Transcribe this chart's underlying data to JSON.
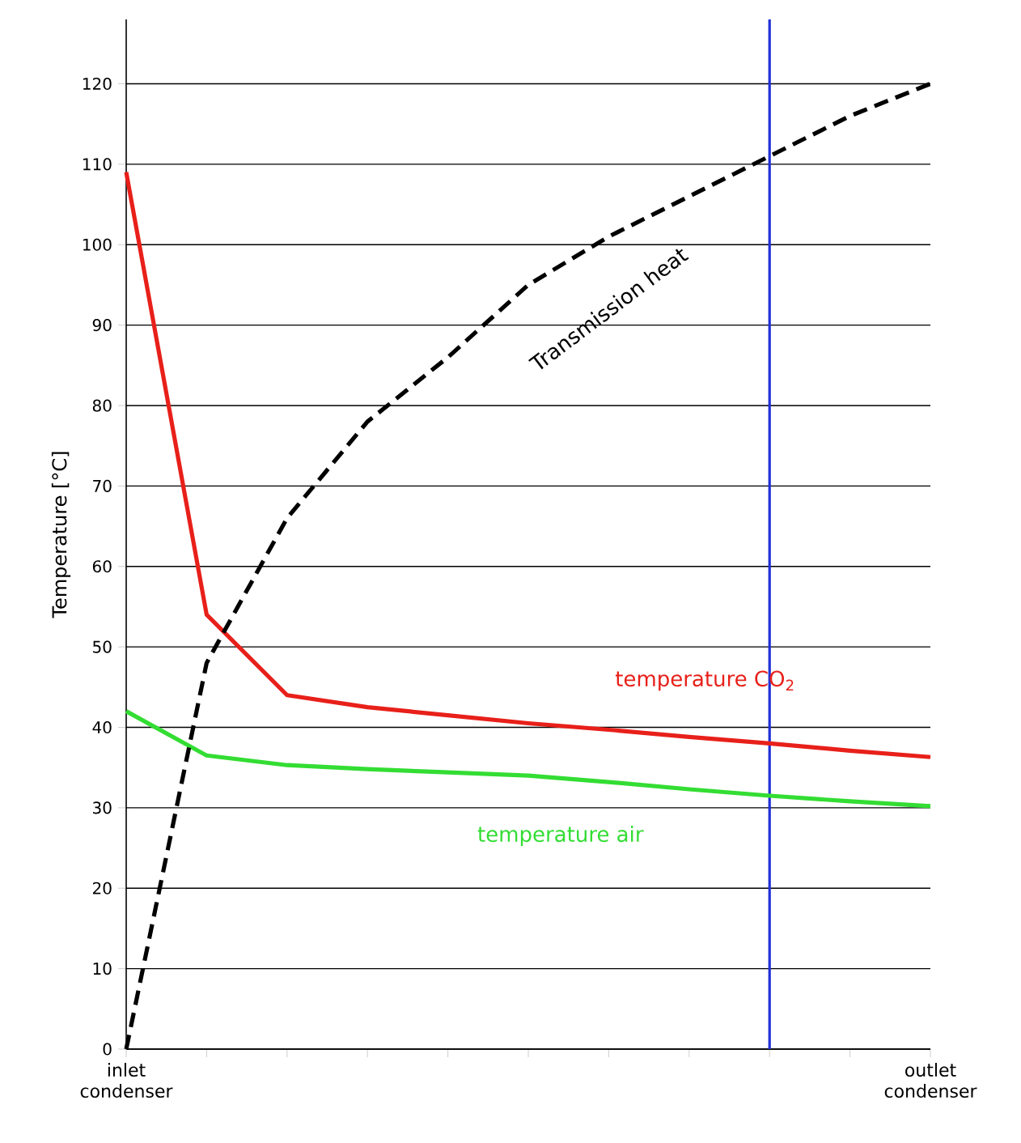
{
  "chart_data": {
    "type": "line",
    "ylabel": "Temperature [°C]",
    "ylim": [
      0,
      128
    ],
    "categories": [
      "inlet condenser",
      null,
      null,
      null,
      null,
      null,
      null,
      null,
      null,
      null,
      "outlet condenser"
    ],
    "yticks": [
      0,
      10,
      20,
      30,
      40,
      50,
      60,
      70,
      80,
      90,
      100,
      110,
      120
    ],
    "grid": "y",
    "marker": "none",
    "series": [
      {
        "name": "temperature CO$_{2}$",
        "color": "#e8201a",
        "line_style": "solid",
        "values": [
          109,
          54,
          44,
          42.5,
          41.5,
          40.5,
          39.7,
          38.8,
          38,
          37.1,
          36.3
        ]
      },
      {
        "name": "temperature air",
        "color": "#33dd33",
        "line_style": "solid",
        "values": [
          42,
          36.5,
          35.3,
          34.8,
          34.4,
          34,
          33.2,
          32.3,
          31.5,
          30.8,
          30.2
        ]
      },
      {
        "name": "Transmission heat",
        "color": "#000000",
        "line_style": "dashed",
        "values": [
          0,
          48,
          66,
          78,
          86,
          95,
          101,
          106,
          111,
          116,
          120
        ]
      }
    ]
  }
}
